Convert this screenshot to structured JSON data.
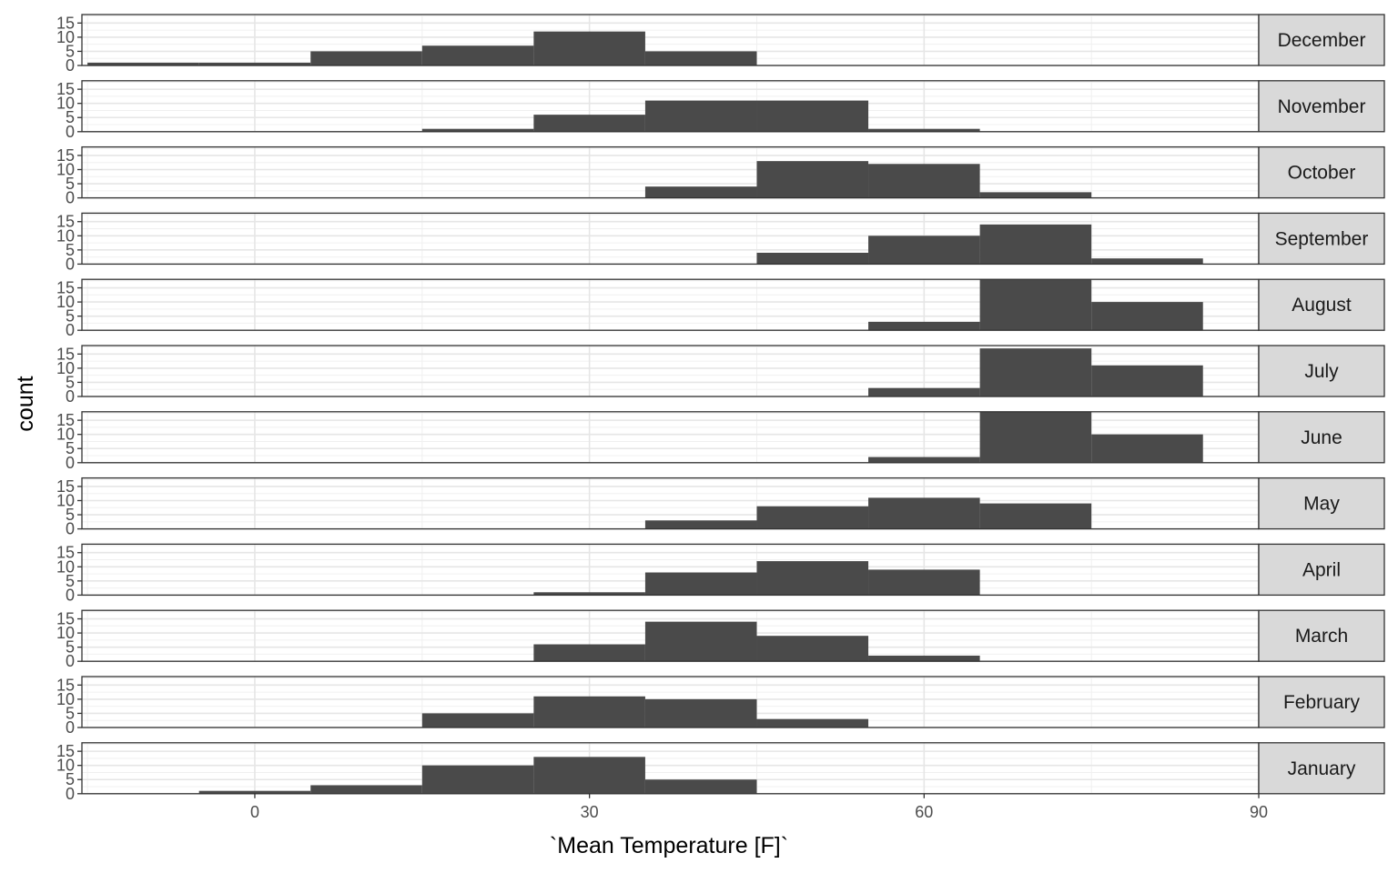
{
  "chart_data": {
    "type": "bar",
    "chart_kind": "faceted histogram",
    "xlabel": "`Mean Temperature [F]`",
    "ylabel": "count",
    "xlim": [
      -15.5,
      90
    ],
    "ylim": [
      0,
      18
    ],
    "x_ticks": [
      0,
      30,
      60,
      90
    ],
    "y_ticks": [
      0,
      5,
      10,
      15
    ],
    "bin_width": 10,
    "theme": "bw",
    "grid": true,
    "bar_color": "#4a4a4a",
    "strip_fill": "#d9d9d9",
    "facets": [
      {
        "label": "December",
        "bins": [
          {
            "x0": -15,
            "x1": -5,
            "count": 1
          },
          {
            "x0": -5,
            "x1": 5,
            "count": 1
          },
          {
            "x0": 5,
            "x1": 15,
            "count": 5
          },
          {
            "x0": 15,
            "x1": 25,
            "count": 7
          },
          {
            "x0": 25,
            "x1": 35,
            "count": 12
          },
          {
            "x0": 35,
            "x1": 45,
            "count": 5
          }
        ]
      },
      {
        "label": "November",
        "bins": [
          {
            "x0": 15,
            "x1": 25,
            "count": 1
          },
          {
            "x0": 25,
            "x1": 35,
            "count": 6
          },
          {
            "x0": 35,
            "x1": 45,
            "count": 11
          },
          {
            "x0": 45,
            "x1": 55,
            "count": 11
          },
          {
            "x0": 55,
            "x1": 65,
            "count": 1
          }
        ]
      },
      {
        "label": "October",
        "bins": [
          {
            "x0": 35,
            "x1": 45,
            "count": 4
          },
          {
            "x0": 45,
            "x1": 55,
            "count": 13
          },
          {
            "x0": 55,
            "x1": 65,
            "count": 12
          },
          {
            "x0": 65,
            "x1": 75,
            "count": 2
          }
        ]
      },
      {
        "label": "September",
        "bins": [
          {
            "x0": 45,
            "x1": 55,
            "count": 4
          },
          {
            "x0": 55,
            "x1": 65,
            "count": 10
          },
          {
            "x0": 65,
            "x1": 75,
            "count": 14
          },
          {
            "x0": 75,
            "x1": 85,
            "count": 2
          }
        ]
      },
      {
        "label": "August",
        "bins": [
          {
            "x0": 55,
            "x1": 65,
            "count": 3
          },
          {
            "x0": 65,
            "x1": 75,
            "count": 18
          },
          {
            "x0": 75,
            "x1": 85,
            "count": 10
          }
        ]
      },
      {
        "label": "July",
        "bins": [
          {
            "x0": 55,
            "x1": 65,
            "count": 3
          },
          {
            "x0": 65,
            "x1": 75,
            "count": 17
          },
          {
            "x0": 75,
            "x1": 85,
            "count": 11
          }
        ]
      },
      {
        "label": "June",
        "bins": [
          {
            "x0": 55,
            "x1": 65,
            "count": 2
          },
          {
            "x0": 65,
            "x1": 75,
            "count": 18
          },
          {
            "x0": 75,
            "x1": 85,
            "count": 10
          }
        ]
      },
      {
        "label": "May",
        "bins": [
          {
            "x0": 35,
            "x1": 45,
            "count": 3
          },
          {
            "x0": 45,
            "x1": 55,
            "count": 8
          },
          {
            "x0": 55,
            "x1": 65,
            "count": 11
          },
          {
            "x0": 65,
            "x1": 75,
            "count": 9
          }
        ]
      },
      {
        "label": "April",
        "bins": [
          {
            "x0": 25,
            "x1": 35,
            "count": 1
          },
          {
            "x0": 35,
            "x1": 45,
            "count": 8
          },
          {
            "x0": 45,
            "x1": 55,
            "count": 12
          },
          {
            "x0": 55,
            "x1": 65,
            "count": 9
          }
        ]
      },
      {
        "label": "March",
        "bins": [
          {
            "x0": 25,
            "x1": 35,
            "count": 6
          },
          {
            "x0": 35,
            "x1": 45,
            "count": 14
          },
          {
            "x0": 45,
            "x1": 55,
            "count": 9
          },
          {
            "x0": 55,
            "x1": 65,
            "count": 2
          }
        ]
      },
      {
        "label": "February",
        "bins": [
          {
            "x0": 15,
            "x1": 25,
            "count": 5
          },
          {
            "x0": 25,
            "x1": 35,
            "count": 11
          },
          {
            "x0": 35,
            "x1": 45,
            "count": 10
          },
          {
            "x0": 45,
            "x1": 55,
            "count": 3
          }
        ]
      },
      {
        "label": "January",
        "bins": [
          {
            "x0": -5,
            "x1": 5,
            "count": 1
          },
          {
            "x0": 5,
            "x1": 15,
            "count": 3
          },
          {
            "x0": 15,
            "x1": 25,
            "count": 10
          },
          {
            "x0": 25,
            "x1": 35,
            "count": 13
          },
          {
            "x0": 35,
            "x1": 45,
            "count": 5
          }
        ]
      }
    ]
  }
}
